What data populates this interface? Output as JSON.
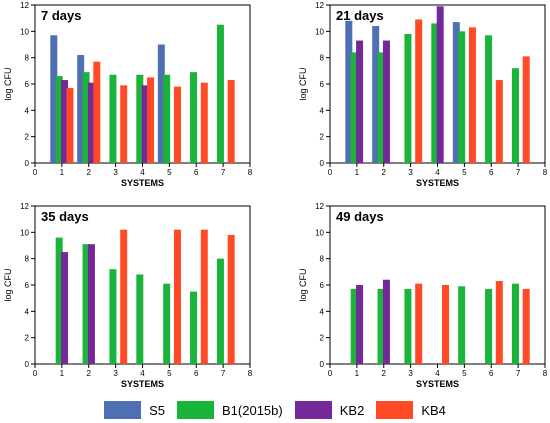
{
  "chart_data": [
    {
      "type": "bar",
      "title": "7 days",
      "xlabel": "SYSTEMS",
      "ylabel": "log CFU",
      "xlim": [
        0,
        8
      ],
      "ylim": [
        0,
        12
      ],
      "xticks": [
        "0",
        "1",
        "2",
        "3",
        "4",
        "5",
        "6",
        "7",
        "8"
      ],
      "yticks": [
        "0",
        "2",
        "4",
        "6",
        "8",
        "10",
        "12"
      ],
      "categories": [
        1,
        2,
        3,
        4,
        5,
        6,
        7
      ],
      "series": [
        {
          "name": "S5",
          "values": [
            9.7,
            8.2,
            null,
            null,
            9.0,
            null,
            null
          ]
        },
        {
          "name": "B1(2015b)",
          "values": [
            6.6,
            6.9,
            6.7,
            6.7,
            6.7,
            6.9,
            10.5
          ]
        },
        {
          "name": "KB2",
          "values": [
            6.3,
            6.1,
            null,
            5.9,
            null,
            null,
            null
          ]
        },
        {
          "name": "KB4",
          "values": [
            5.7,
            7.7,
            5.9,
            6.5,
            5.8,
            6.1,
            6.3
          ]
        }
      ]
    },
    {
      "type": "bar",
      "title": "21 days",
      "xlabel": "SYSTEMS",
      "ylabel": "log CFU",
      "xlim": [
        0,
        8
      ],
      "ylim": [
        0,
        12
      ],
      "xticks": [
        "0",
        "1",
        "2",
        "3",
        "4",
        "5",
        "6",
        "7",
        "8"
      ],
      "yticks": [
        "0",
        "2",
        "4",
        "6",
        "8",
        "10",
        "12"
      ],
      "categories": [
        1,
        2,
        3,
        4,
        5,
        6,
        7
      ],
      "series": [
        {
          "name": "S5",
          "values": [
            10.8,
            10.4,
            null,
            null,
            10.7,
            null,
            null
          ]
        },
        {
          "name": "B1(2015b)",
          "values": [
            8.4,
            8.4,
            9.8,
            10.6,
            10.0,
            9.7,
            7.2
          ]
        },
        {
          "name": "KB2",
          "values": [
            9.3,
            9.3,
            null,
            11.9,
            null,
            null,
            null
          ]
        },
        {
          "name": "KB4",
          "values": [
            null,
            null,
            10.9,
            null,
            10.3,
            6.3,
            8.1
          ]
        }
      ]
    },
    {
      "type": "bar",
      "title": "35 days",
      "xlabel": "SYSTEMS",
      "ylabel": "log CFU",
      "xlim": [
        0,
        8
      ],
      "ylim": [
        0,
        12
      ],
      "xticks": [
        "0",
        "1",
        "2",
        "3",
        "4",
        "5",
        "6",
        "7",
        "8"
      ],
      "yticks": [
        "0",
        "2",
        "4",
        "6",
        "8",
        "10",
        "12"
      ],
      "categories": [
        1,
        2,
        3,
        4,
        5,
        6,
        7
      ],
      "series": [
        {
          "name": "S5",
          "values": [
            null,
            null,
            null,
            null,
            null,
            null,
            null
          ]
        },
        {
          "name": "B1(2015b)",
          "values": [
            9.6,
            9.1,
            7.2,
            6.8,
            6.1,
            5.5,
            8.0
          ]
        },
        {
          "name": "KB2",
          "values": [
            8.5,
            9.1,
            null,
            null,
            null,
            null,
            null
          ]
        },
        {
          "name": "KB4",
          "values": [
            null,
            null,
            10.2,
            null,
            10.2,
            10.2,
            9.8
          ]
        }
      ]
    },
    {
      "type": "bar",
      "title": "49 days",
      "xlabel": "SYSTEMS",
      "ylabel": "log CFU",
      "xlim": [
        0,
        8
      ],
      "ylim": [
        0,
        12
      ],
      "xticks": [
        "0",
        "1",
        "2",
        "3",
        "4",
        "5",
        "6",
        "7",
        "8"
      ],
      "yticks": [
        "0",
        "2",
        "4",
        "6",
        "8",
        "10",
        "12"
      ],
      "categories": [
        1,
        2,
        3,
        4,
        5,
        6,
        7
      ],
      "series": [
        {
          "name": "S5",
          "values": [
            null,
            null,
            null,
            null,
            null,
            null,
            null
          ]
        },
        {
          "name": "B1(2015b)",
          "values": [
            5.7,
            5.7,
            5.7,
            null,
            5.9,
            5.7,
            6.1
          ]
        },
        {
          "name": "KB2",
          "values": [
            6.0,
            6.4,
            null,
            null,
            null,
            null,
            null
          ]
        },
        {
          "name": "KB4",
          "values": [
            null,
            null,
            6.1,
            6.0,
            null,
            6.3,
            5.7
          ]
        }
      ]
    }
  ],
  "series_offsets": [
    -0.3,
    -0.1,
    0.1,
    0.3
  ],
  "legend": {
    "placement": "bottom",
    "items": [
      {
        "name": "S5",
        "color": "#4f6fb3"
      },
      {
        "name": "B1(2015b)",
        "color": "#1ab43a"
      },
      {
        "name": "KB2",
        "color": "#74289a"
      },
      {
        "name": "KB4",
        "color": "#ff4a25"
      }
    ]
  }
}
